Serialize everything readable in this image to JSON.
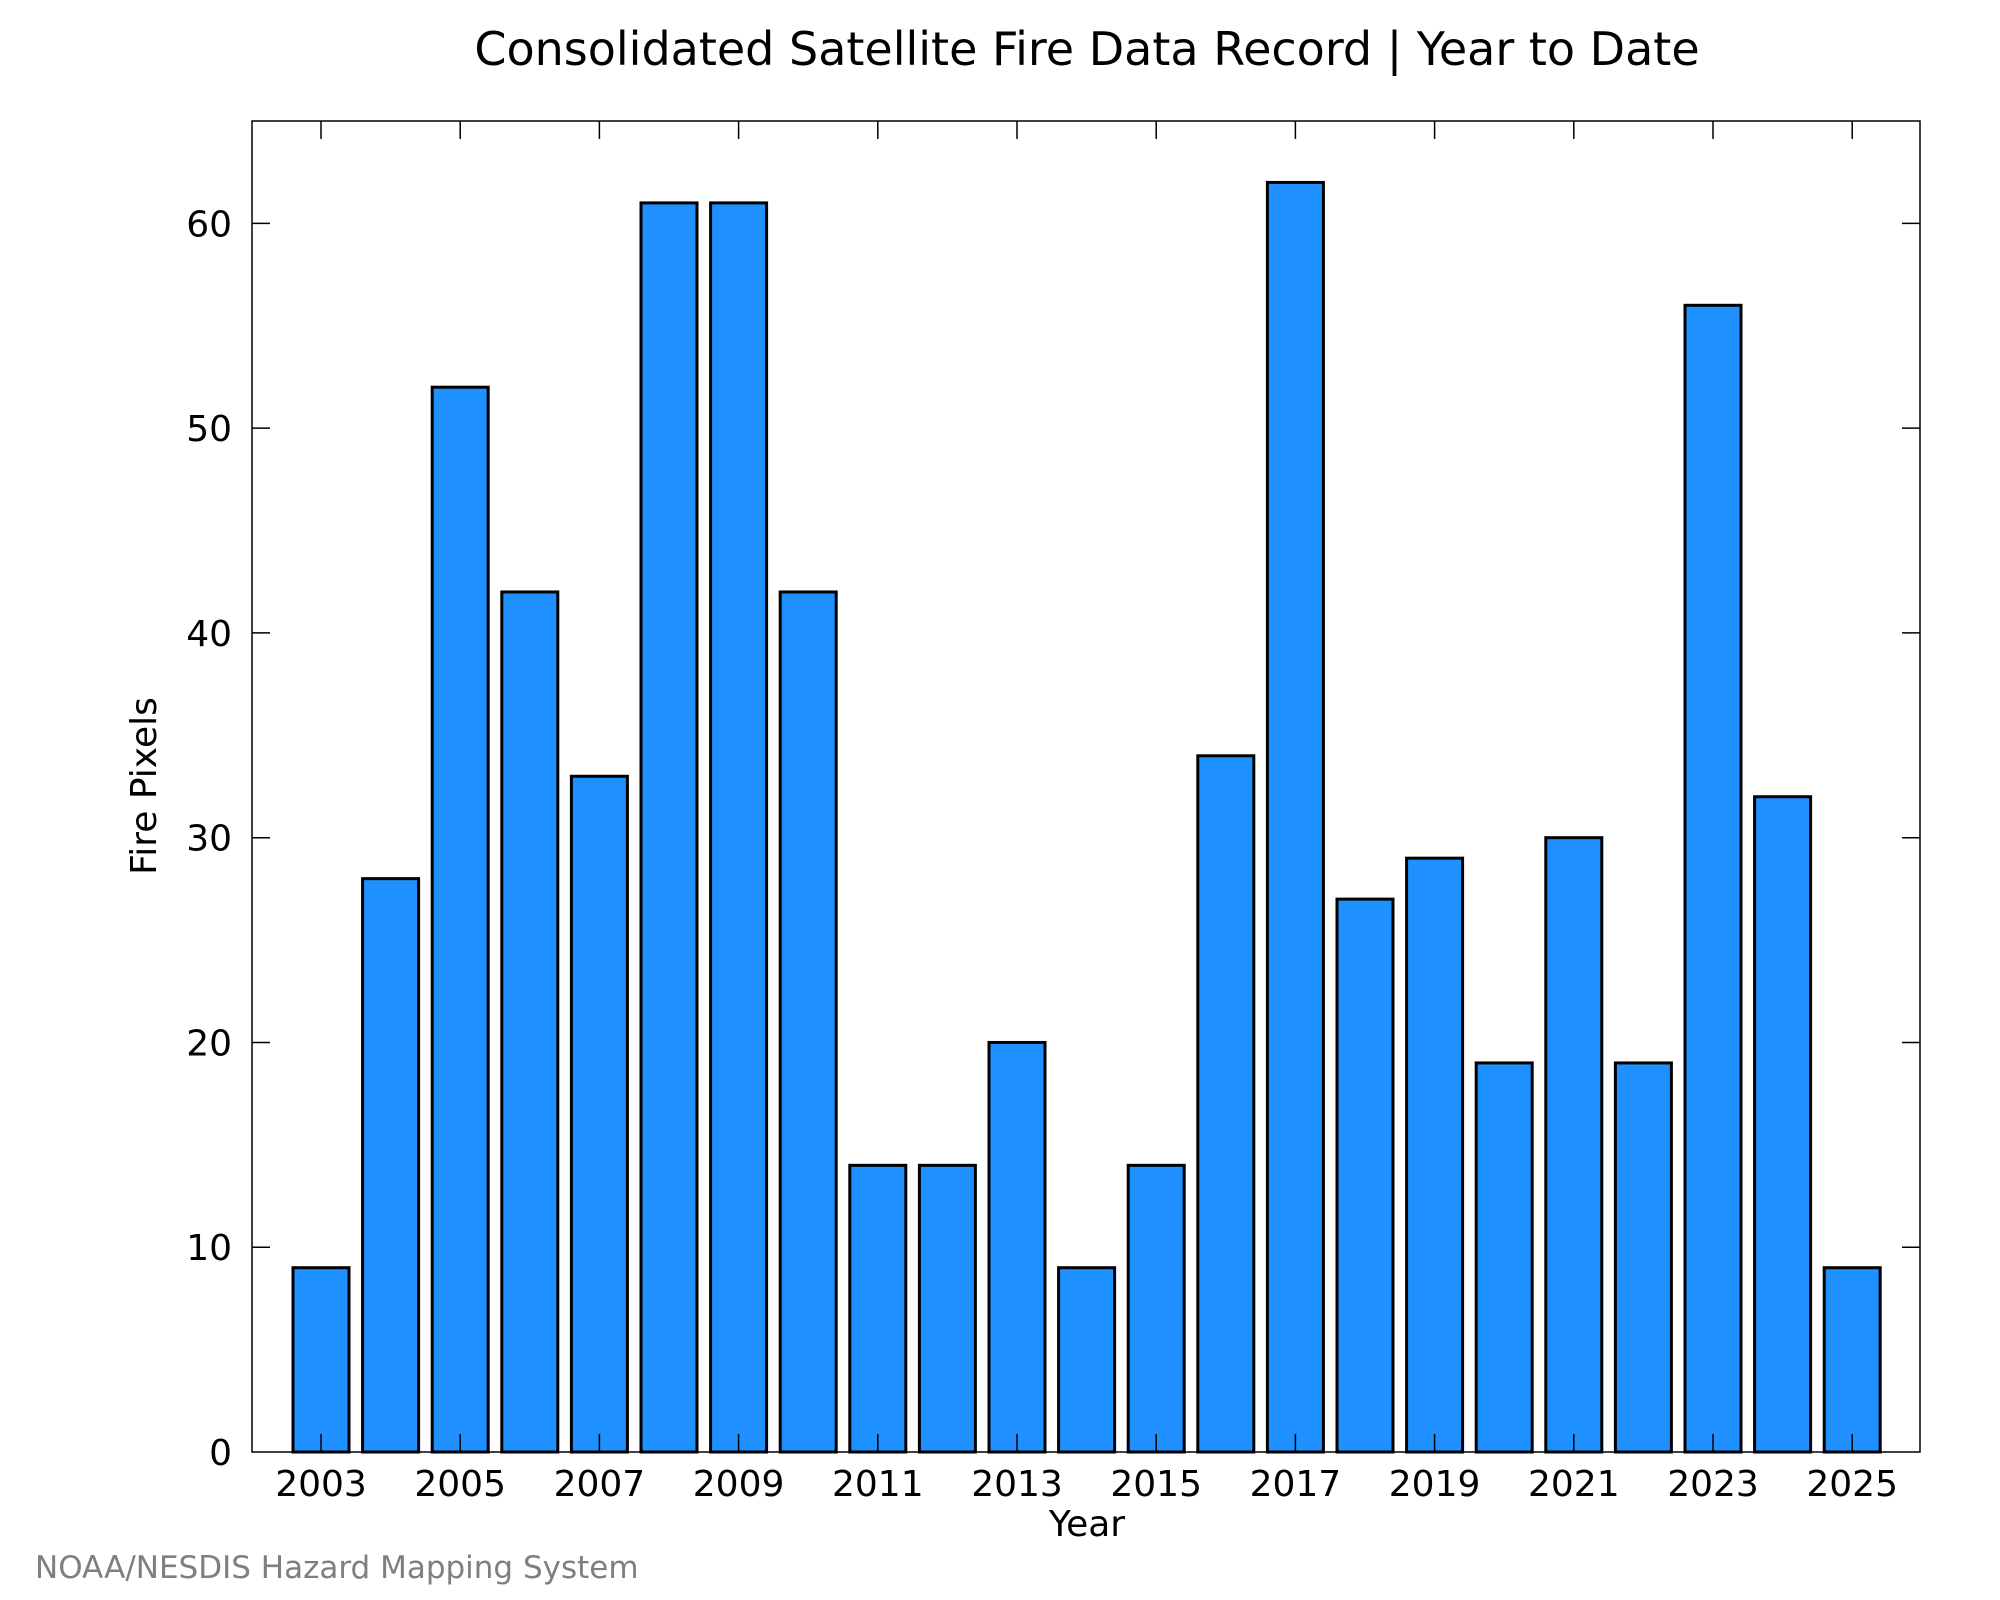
{
  "chart_data": {
    "type": "bar",
    "title": "Consolidated Satellite Fire Data Record | Year to Date",
    "xlabel": "Year",
    "ylabel": "Fire Pixels",
    "categories": [
      "2003",
      "2004",
      "2005",
      "2006",
      "2007",
      "2008",
      "2009",
      "2010",
      "2011",
      "2012",
      "2013",
      "2014",
      "2015",
      "2016",
      "2017",
      "2018",
      "2019",
      "2020",
      "2021",
      "2022",
      "2023",
      "2024",
      "2025"
    ],
    "values": [
      9,
      28,
      52,
      42,
      33,
      61,
      61,
      42,
      14,
      14,
      20,
      9,
      14,
      34,
      62,
      27,
      29,
      19,
      30,
      19,
      56,
      32,
      9
    ],
    "x_tick_labels": [
      "2003",
      "2005",
      "2007",
      "2009",
      "2011",
      "2013",
      "2015",
      "2017",
      "2019",
      "2021",
      "2023",
      "2025"
    ],
    "y_tick_labels": [
      "0",
      "10",
      "20",
      "30",
      "40",
      "50",
      "60"
    ],
    "ylim": [
      0,
      65
    ],
    "grid": false,
    "bar_color": "#1e90ff",
    "edge_color": "#000000"
  },
  "credit": "NOAA/NESDIS Hazard Mapping System"
}
